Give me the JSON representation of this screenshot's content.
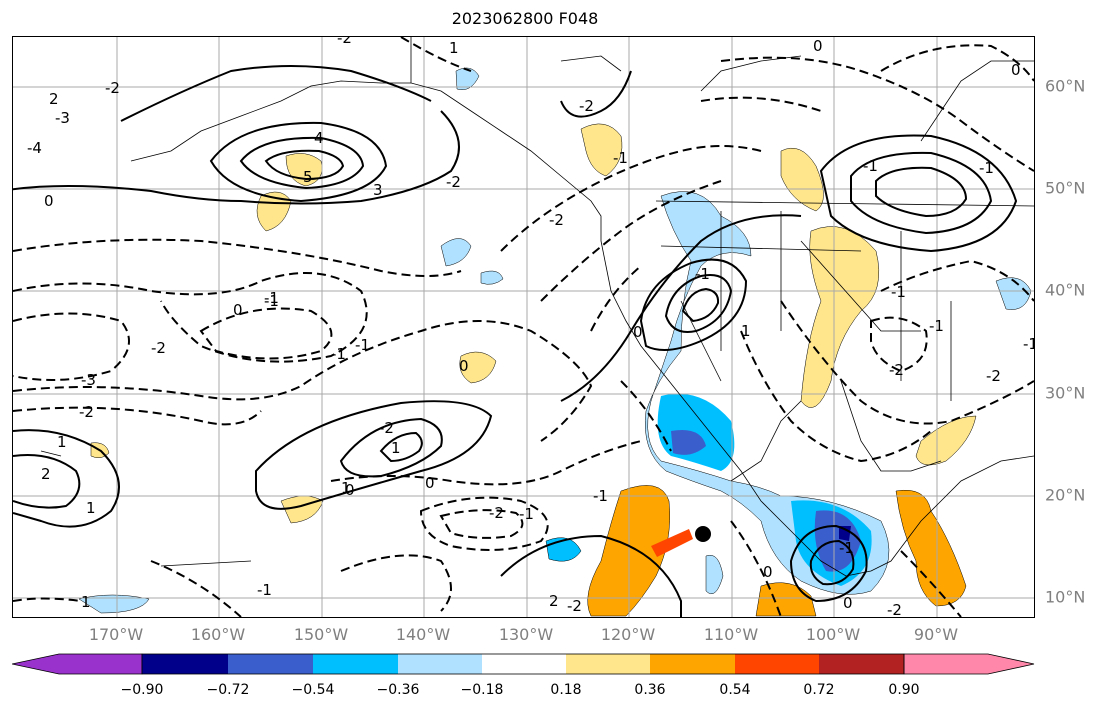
{
  "title": "2023062800 F048",
  "lon_labels": [
    "170°W",
    "160°W",
    "150°W",
    "140°W",
    "130°W",
    "120°W",
    "110°W",
    "100°W",
    "90°W"
  ],
  "lat_labels": [
    "60°N",
    "50°N",
    "40°N",
    "30°N",
    "20°N",
    "10°N"
  ],
  "colorbar": {
    "colors": [
      "#9932cc",
      "#00008b",
      "#3a5fcd",
      "#00bfff",
      "#b0e2ff",
      "#ffffff",
      "#ffe68c",
      "#ffa500",
      "#ff4500",
      "#b22222",
      "#ff88aa"
    ],
    "tick_labels": [
      "−0.90",
      "−0.72",
      "−0.54",
      "−0.36",
      "−0.18",
      "0.18",
      "0.36",
      "0.54",
      "0.72",
      "0.90"
    ]
  },
  "contour_labels": [
    "-2",
    "1",
    "0",
    "2",
    "-3",
    "-4",
    "-2",
    "4",
    "5",
    "3",
    "-2",
    "-2",
    "0",
    "-1",
    "-1",
    "-2",
    "-3",
    "-2",
    "-1",
    "1",
    "2",
    "1",
    "-2",
    "1",
    "0",
    "0",
    "-1",
    "0",
    "1",
    "-2",
    "-1",
    "-1",
    "-2",
    "2",
    "-1",
    "0",
    "-1",
    "1",
    "0",
    "-1",
    "-2",
    "1",
    "-1",
    "-1",
    "0",
    "-1",
    "-1",
    "-2",
    "-2",
    "-1",
    "0",
    "-1",
    "0",
    "-2"
  ],
  "markers": [
    {
      "name": "storm-center-marker"
    }
  ]
}
